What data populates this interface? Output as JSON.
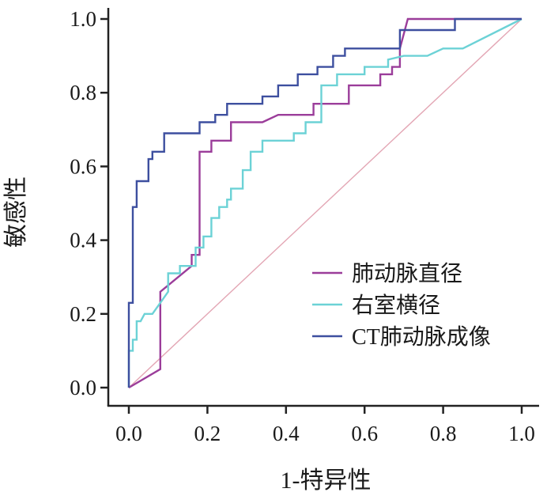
{
  "chart_data": {
    "type": "line",
    "title": "",
    "xlabel": "1-特异性",
    "ylabel": "敏感性",
    "xlim": [
      0.0,
      1.0
    ],
    "ylim": [
      0.0,
      1.0
    ],
    "xticks": [
      "0.0",
      "0.2",
      "0.4",
      "0.6",
      "0.8",
      "1.0"
    ],
    "yticks": [
      "0.0",
      "0.2",
      "0.4",
      "0.6",
      "0.8",
      "1.0"
    ],
    "grid": false,
    "legend_position": "bottom-right",
    "reference_line": {
      "x": [
        0.0,
        1.0
      ],
      "y": [
        0.0,
        1.0
      ],
      "color": "#e3a6b4"
    },
    "series": [
      {
        "name": "肺动脉直径",
        "color": "#9b3d9a",
        "x": [
          0.0,
          0.08,
          0.08,
          0.16,
          0.16,
          0.18,
          0.18,
          0.21,
          0.21,
          0.26,
          0.26,
          0.34,
          0.38,
          0.42,
          0.47,
          0.47,
          0.5,
          0.56,
          0.56,
          0.64,
          0.64,
          0.67,
          0.67,
          0.69,
          0.69,
          0.71,
          0.84,
          0.84,
          1.0
        ],
        "y": [
          0.0,
          0.05,
          0.26,
          0.33,
          0.36,
          0.36,
          0.64,
          0.64,
          0.67,
          0.67,
          0.72,
          0.72,
          0.74,
          0.74,
          0.74,
          0.77,
          0.77,
          0.77,
          0.82,
          0.82,
          0.85,
          0.85,
          0.87,
          0.87,
          0.92,
          1.0,
          1.0,
          1.0,
          1.0
        ]
      },
      {
        "name": "右室横径",
        "color": "#6cd2d6",
        "x": [
          0.0,
          0.0,
          0.01,
          0.01,
          0.02,
          0.02,
          0.03,
          0.04,
          0.06,
          0.08,
          0.1,
          0.1,
          0.13,
          0.13,
          0.17,
          0.17,
          0.19,
          0.19,
          0.21,
          0.21,
          0.23,
          0.23,
          0.25,
          0.25,
          0.26,
          0.26,
          0.29,
          0.29,
          0.31,
          0.31,
          0.34,
          0.34,
          0.38,
          0.41,
          0.42,
          0.42,
          0.45,
          0.45,
          0.49,
          0.49,
          0.53,
          0.53,
          0.6,
          0.6,
          0.66,
          0.66,
          0.7,
          0.76,
          0.8,
          0.85,
          1.0
        ],
        "y": [
          0.0,
          0.1,
          0.1,
          0.13,
          0.13,
          0.18,
          0.18,
          0.2,
          0.2,
          0.23,
          0.26,
          0.31,
          0.31,
          0.33,
          0.33,
          0.38,
          0.38,
          0.41,
          0.41,
          0.46,
          0.46,
          0.49,
          0.49,
          0.51,
          0.51,
          0.54,
          0.54,
          0.59,
          0.59,
          0.64,
          0.64,
          0.67,
          0.67,
          0.67,
          0.67,
          0.69,
          0.69,
          0.72,
          0.72,
          0.82,
          0.82,
          0.85,
          0.85,
          0.87,
          0.87,
          0.89,
          0.9,
          0.9,
          0.92,
          0.92,
          1.0
        ]
      },
      {
        "name": "CT肺动脉成像",
        "color": "#3d4f9f",
        "x": [
          0.0,
          0.0,
          0.01,
          0.01,
          0.02,
          0.02,
          0.05,
          0.05,
          0.06,
          0.06,
          0.09,
          0.09,
          0.18,
          0.18,
          0.22,
          0.22,
          0.25,
          0.25,
          0.34,
          0.34,
          0.38,
          0.38,
          0.43,
          0.43,
          0.48,
          0.48,
          0.52,
          0.52,
          0.55,
          0.55,
          0.69,
          0.69,
          0.72,
          0.72,
          0.83,
          0.83,
          1.0
        ],
        "y": [
          0.0,
          0.23,
          0.23,
          0.49,
          0.49,
          0.56,
          0.56,
          0.62,
          0.62,
          0.64,
          0.64,
          0.69,
          0.69,
          0.72,
          0.72,
          0.74,
          0.74,
          0.77,
          0.77,
          0.79,
          0.79,
          0.82,
          0.82,
          0.85,
          0.85,
          0.87,
          0.87,
          0.9,
          0.9,
          0.92,
          0.92,
          0.97,
          0.97,
          0.97,
          0.97,
          1.0,
          1.0
        ]
      }
    ]
  }
}
